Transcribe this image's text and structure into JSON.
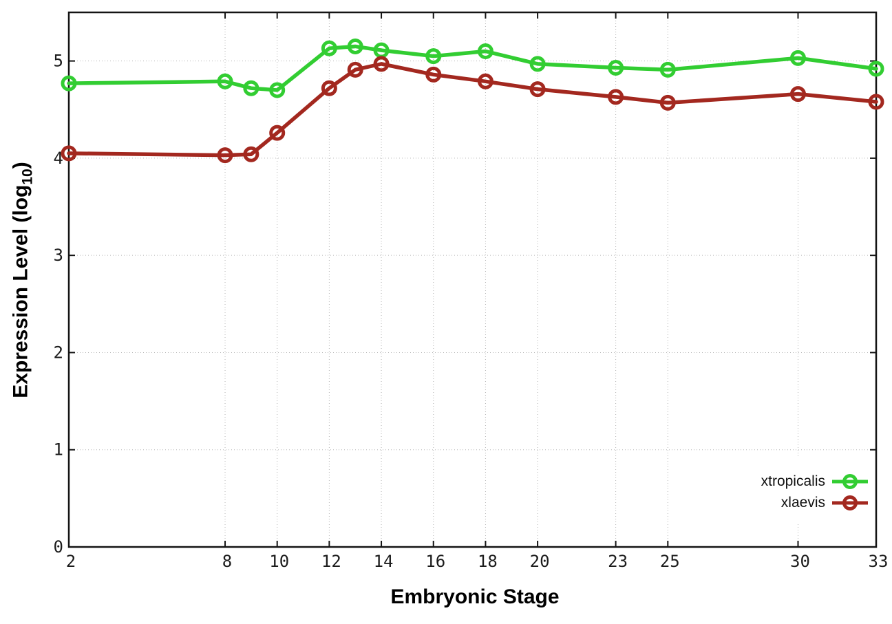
{
  "chart_data": {
    "type": "line",
    "title": "",
    "xlabel": "Embryonic Stage",
    "ylabel": "Expression Level (log10)",
    "ylabel_parts": {
      "pre": "Expression Level (log",
      "sub": "10",
      "post": ")"
    },
    "x": [
      2,
      8,
      9,
      10,
      12,
      13,
      14,
      16,
      18,
      20,
      23,
      25,
      30,
      33
    ],
    "series": [
      {
        "name": "xtropicalis",
        "color": "#32cd32",
        "values": [
          4.77,
          4.79,
          4.72,
          4.7,
          5.13,
          5.15,
          5.11,
          5.05,
          5.1,
          4.97,
          4.93,
          4.91,
          5.03,
          4.92
        ]
      },
      {
        "name": "xlaevis",
        "color": "#a3281f",
        "values": [
          4.05,
          4.03,
          4.04,
          4.26,
          4.72,
          4.91,
          4.97,
          4.86,
          4.79,
          4.71,
          4.63,
          4.57,
          4.66,
          4.58
        ]
      }
    ],
    "xlim": [
      2,
      33
    ],
    "ylim": [
      0,
      5.5
    ],
    "xticks": [
      2,
      8,
      10,
      12,
      14,
      16,
      18,
      20,
      23,
      25,
      30,
      33
    ],
    "yticks": [
      0,
      1,
      2,
      3,
      4,
      5
    ],
    "grid": true,
    "marker": "open-circle",
    "legend_position": "inside-bottom-right",
    "legend_opaque": true,
    "axis_color": "#141414",
    "grid_color": "#b4b4b4",
    "background_color": "#ffffff"
  }
}
